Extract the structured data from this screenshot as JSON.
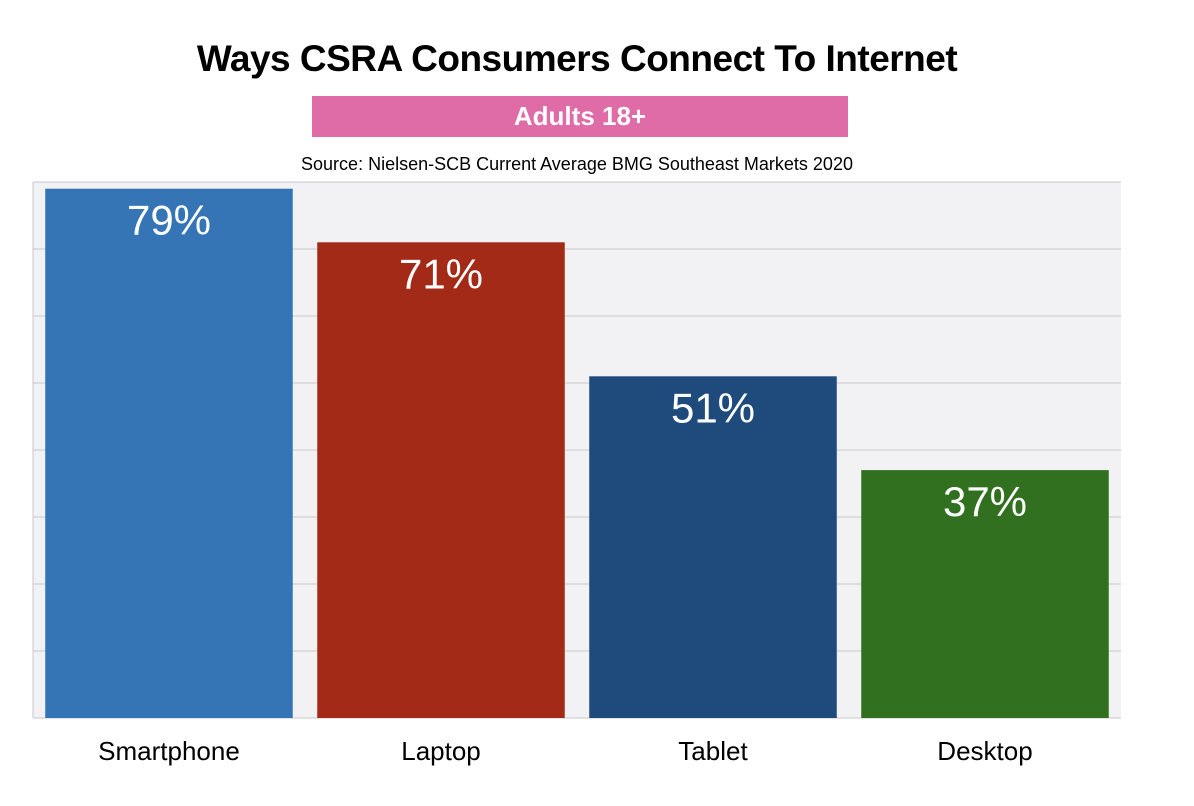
{
  "chart_data": {
    "type": "bar",
    "title": "Ways CSRA Consumers Connect To Internet",
    "subtitle": "Adults 18+",
    "source": "Source: Nielsen-SCB  Current Average BMG Southeast Markets 2020",
    "categories": [
      "Smartphone",
      "Laptop",
      "Tablet",
      "Desktop"
    ],
    "values": [
      79,
      71,
      51,
      37
    ],
    "data_labels": [
      "79%",
      "71%",
      "51%",
      "37%"
    ],
    "colors": [
      "#3575b6",
      "#a42a18",
      "#1f4b7c",
      "#31701e"
    ],
    "xlabel": "",
    "ylabel": "",
    "ylim": [
      0,
      80
    ],
    "ytick_step": 10,
    "show_ytick_labels": false,
    "grid": true,
    "legend": "none"
  },
  "theme": {
    "subtitle_bg": "#df6ba7",
    "plot_bg": "#f2f2f4",
    "grid_color": "#c8c8cc"
  }
}
